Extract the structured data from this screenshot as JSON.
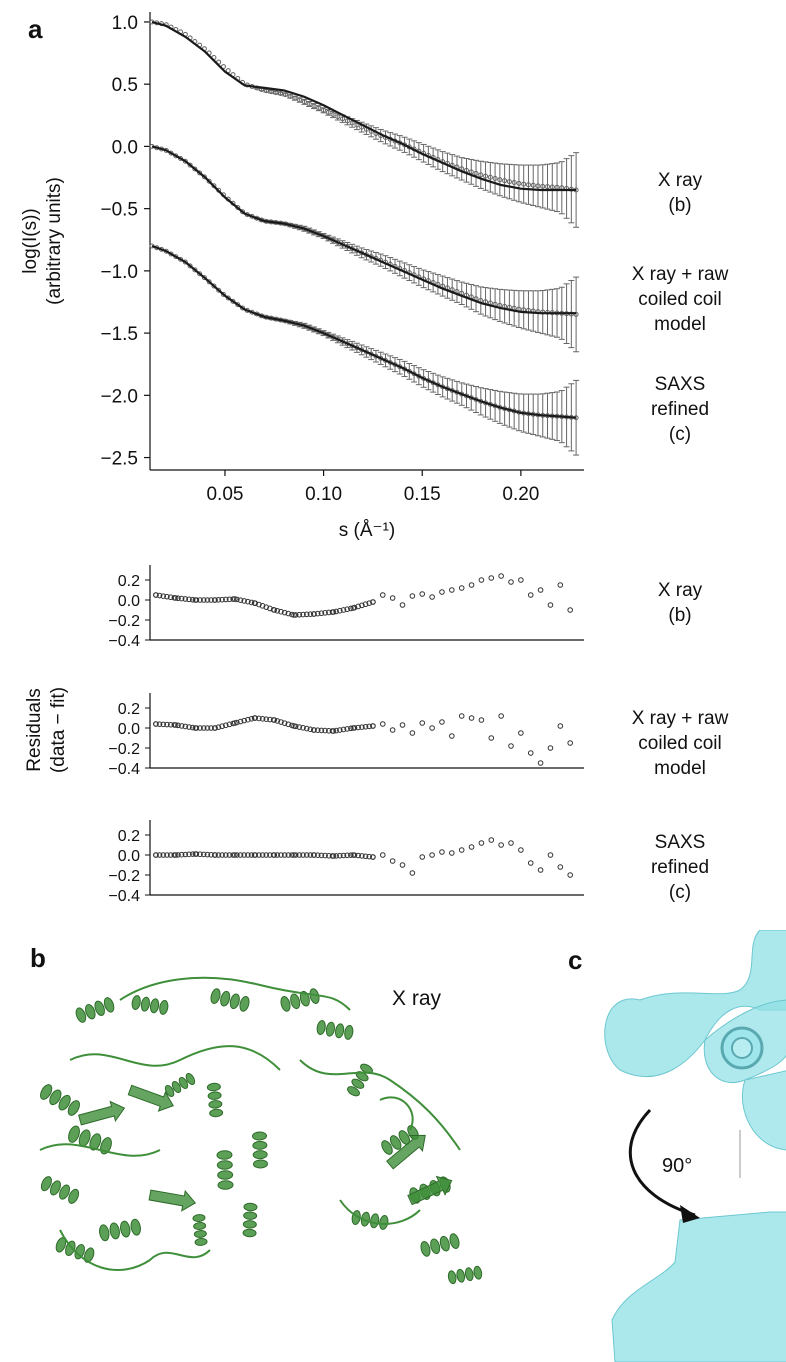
{
  "panels": {
    "a": "a",
    "b": "b",
    "c": "c"
  },
  "colors": {
    "fit_line": "#1a1a1a",
    "data_marker": "#666666",
    "protein_green": "#3f8f3a",
    "density_cyan": "#8fe0e6",
    "stick_pink": "#c9a0b8"
  },
  "chart_data": [
    {
      "type": "line",
      "xlabel": "s (Å⁻¹)",
      "ylabel": [
        "log(I(s))",
        "(arbitrary units)"
      ],
      "xlim": [
        0.012,
        0.232
      ],
      "ylim": [
        -2.6,
        1.08
      ],
      "xticks": [
        0.05,
        0.1,
        0.15,
        0.2
      ],
      "xtick_labels": [
        "0.05",
        "0.10",
        "0.15",
        "0.20"
      ],
      "yticks": [
        1.0,
        0.5,
        0.0,
        -0.5,
        -1.0,
        -1.5,
        -2.0,
        -2.5
      ],
      "ytick_labels": [
        "1.0",
        "0.5",
        "0.0",
        "−0.5",
        "−1.0",
        "−1.5",
        "−2.0",
        "−2.5"
      ],
      "series": [
        {
          "name": "X ray (b)",
          "label_lines": [
            "X ray",
            "(b)"
          ],
          "x": [
            0.013,
            0.02,
            0.03,
            0.04,
            0.05,
            0.06,
            0.07,
            0.08,
            0.09,
            0.1,
            0.11,
            0.12,
            0.13,
            0.14,
            0.15,
            0.16,
            0.17,
            0.18,
            0.19,
            0.2,
            0.21,
            0.22,
            0.228
          ],
          "data": [
            1.0,
            0.98,
            0.9,
            0.78,
            0.63,
            0.5,
            0.45,
            0.42,
            0.36,
            0.29,
            0.22,
            0.15,
            0.08,
            0.02,
            -0.05,
            -0.12,
            -0.18,
            -0.23,
            -0.27,
            -0.3,
            -0.32,
            -0.33,
            -0.35
          ],
          "fit": [
            1.0,
            0.97,
            0.88,
            0.76,
            0.6,
            0.49,
            0.47,
            0.45,
            0.4,
            0.33,
            0.25,
            0.17,
            0.09,
            0.02,
            -0.06,
            -0.13,
            -0.2,
            -0.26,
            -0.31,
            -0.34,
            -0.35,
            -0.35,
            -0.35
          ],
          "err": [
            0.0,
            0.0,
            0.0,
            0.0,
            0.0,
            0.0,
            0.01,
            0.01,
            0.02,
            0.02,
            0.03,
            0.04,
            0.05,
            0.06,
            0.07,
            0.08,
            0.09,
            0.11,
            0.13,
            0.15,
            0.17,
            0.2,
            0.3
          ]
        },
        {
          "name": "X ray + raw coiled coil model",
          "label_lines": [
            "X ray + raw",
            "coiled coil",
            "model"
          ],
          "x": [
            0.013,
            0.02,
            0.03,
            0.04,
            0.05,
            0.06,
            0.07,
            0.08,
            0.09,
            0.1,
            0.11,
            0.12,
            0.13,
            0.14,
            0.15,
            0.16,
            0.17,
            0.18,
            0.19,
            0.2,
            0.21,
            0.22,
            0.228
          ],
          "data": [
            0.0,
            -0.03,
            -0.12,
            -0.25,
            -0.4,
            -0.54,
            -0.6,
            -0.62,
            -0.66,
            -0.72,
            -0.79,
            -0.86,
            -0.92,
            -0.99,
            -1.06,
            -1.12,
            -1.18,
            -1.24,
            -1.28,
            -1.31,
            -1.33,
            -1.34,
            -1.35
          ],
          "fit": [
            0.0,
            -0.03,
            -0.12,
            -0.25,
            -0.41,
            -0.54,
            -0.6,
            -0.62,
            -0.66,
            -0.72,
            -0.79,
            -0.86,
            -0.93,
            -1.0,
            -1.07,
            -1.14,
            -1.2,
            -1.26,
            -1.3,
            -1.33,
            -1.34,
            -1.34,
            -1.34
          ],
          "err": [
            0.0,
            0.0,
            0.0,
            0.0,
            0.0,
            0.0,
            0.01,
            0.01,
            0.02,
            0.02,
            0.03,
            0.04,
            0.05,
            0.06,
            0.07,
            0.08,
            0.09,
            0.11,
            0.13,
            0.15,
            0.17,
            0.2,
            0.3
          ]
        },
        {
          "name": "SAXS refined (c)",
          "label_lines": [
            "SAXS",
            "refined",
            "(c)"
          ],
          "x": [
            0.013,
            0.02,
            0.03,
            0.04,
            0.05,
            0.06,
            0.07,
            0.08,
            0.09,
            0.1,
            0.11,
            0.12,
            0.13,
            0.14,
            0.15,
            0.16,
            0.17,
            0.18,
            0.19,
            0.2,
            0.21,
            0.22,
            0.228
          ],
          "data": [
            -0.8,
            -0.84,
            -0.93,
            -1.06,
            -1.2,
            -1.31,
            -1.37,
            -1.4,
            -1.44,
            -1.5,
            -1.57,
            -1.64,
            -1.71,
            -1.78,
            -1.86,
            -1.93,
            -1.99,
            -2.05,
            -2.1,
            -2.14,
            -2.16,
            -2.17,
            -2.18
          ],
          "fit": [
            -0.8,
            -0.84,
            -0.93,
            -1.06,
            -1.2,
            -1.31,
            -1.37,
            -1.4,
            -1.44,
            -1.5,
            -1.57,
            -1.64,
            -1.71,
            -1.78,
            -1.86,
            -1.93,
            -1.99,
            -2.05,
            -2.1,
            -2.14,
            -2.16,
            -2.17,
            -2.18
          ],
          "err": [
            0.0,
            0.0,
            0.0,
            0.0,
            0.0,
            0.0,
            0.01,
            0.01,
            0.02,
            0.02,
            0.03,
            0.04,
            0.05,
            0.06,
            0.07,
            0.08,
            0.09,
            0.11,
            0.13,
            0.15,
            0.17,
            0.2,
            0.3
          ]
        }
      ]
    },
    {
      "type": "scatter",
      "ylabel": [
        "Residuals",
        "(data − fit)"
      ],
      "xlim": [
        0.012,
        0.232
      ],
      "ylim": [
        -0.4,
        0.35
      ],
      "yticks": [
        0.2,
        0.0,
        -0.2,
        -0.4
      ],
      "ytick_labels": [
        "0.2",
        "0.0",
        "−0.2",
        "−0.4"
      ],
      "series": [
        {
          "name": "X ray (b)",
          "label_lines": [
            "X ray",
            "(b)"
          ],
          "x": [
            0.015,
            0.025,
            0.035,
            0.045,
            0.055,
            0.065,
            0.075,
            0.085,
            0.095,
            0.105,
            0.115,
            0.125,
            0.13,
            0.135,
            0.14,
            0.145,
            0.15,
            0.155,
            0.16,
            0.165,
            0.17,
            0.175,
            0.18,
            0.185,
            0.19,
            0.195,
            0.2,
            0.205,
            0.21,
            0.215,
            0.22,
            0.225
          ],
          "y": [
            0.05,
            0.02,
            0.0,
            0.0,
            0.01,
            -0.03,
            -0.1,
            -0.15,
            -0.14,
            -0.12,
            -0.08,
            -0.02,
            0.05,
            0.02,
            -0.05,
            0.04,
            0.06,
            0.03,
            0.08,
            0.1,
            0.12,
            0.15,
            0.2,
            0.22,
            0.24,
            0.18,
            0.2,
            0.05,
            0.1,
            -0.05,
            0.15,
            -0.1
          ]
        },
        {
          "name": "X ray + raw coiled coil model",
          "label_lines": [
            "X ray + raw",
            "coiled coil",
            "model"
          ],
          "x": [
            0.015,
            0.025,
            0.035,
            0.045,
            0.055,
            0.065,
            0.075,
            0.085,
            0.095,
            0.105,
            0.115,
            0.125,
            0.13,
            0.135,
            0.14,
            0.145,
            0.15,
            0.155,
            0.16,
            0.165,
            0.17,
            0.175,
            0.18,
            0.185,
            0.19,
            0.195,
            0.2,
            0.205,
            0.21,
            0.215,
            0.22,
            0.225
          ],
          "y": [
            0.04,
            0.03,
            0.0,
            0.0,
            0.05,
            0.1,
            0.08,
            0.02,
            -0.02,
            -0.03,
            0.0,
            0.02,
            0.04,
            -0.02,
            0.03,
            -0.05,
            0.05,
            0.0,
            0.06,
            -0.08,
            0.12,
            0.1,
            0.08,
            -0.1,
            0.12,
            -0.18,
            -0.05,
            -0.25,
            -0.35,
            -0.2,
            0.02,
            -0.15
          ]
        },
        {
          "name": "SAXS refined (c)",
          "label_lines": [
            "SAXS",
            "refined",
            "(c)"
          ],
          "x": [
            0.015,
            0.025,
            0.035,
            0.045,
            0.055,
            0.065,
            0.075,
            0.085,
            0.095,
            0.105,
            0.115,
            0.125,
            0.13,
            0.135,
            0.14,
            0.145,
            0.15,
            0.155,
            0.16,
            0.165,
            0.17,
            0.175,
            0.18,
            0.185,
            0.19,
            0.195,
            0.2,
            0.205,
            0.21,
            0.215,
            0.22,
            0.225
          ],
          "y": [
            0.0,
            0.0,
            0.01,
            0.0,
            0.0,
            0.0,
            0.0,
            0.0,
            0.0,
            -0.01,
            0.0,
            -0.02,
            0.0,
            -0.06,
            -0.1,
            -0.18,
            -0.02,
            0.0,
            0.03,
            0.02,
            0.05,
            0.08,
            0.12,
            0.15,
            0.1,
            0.12,
            0.05,
            -0.08,
            -0.15,
            0.0,
            -0.12,
            -0.2
          ]
        }
      ]
    }
  ],
  "panel_b": {
    "label": "X ray"
  },
  "panel_c": {
    "rotation": "90°"
  }
}
